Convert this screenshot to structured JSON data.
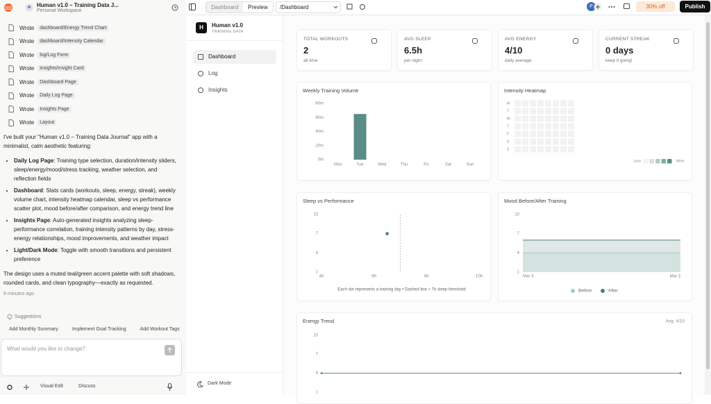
{
  "chat": {
    "project_title": "Human v1.0 – Training Data J...",
    "workspace": "Personal Workspace",
    "actions": [
      {
        "verb": "Wrote",
        "target": "dashboard/Energy Trend Chart"
      },
      {
        "verb": "Wrote",
        "target": "dashboard/Intensity Calendar"
      },
      {
        "verb": "Wrote",
        "target": "log/Log Form"
      },
      {
        "verb": "Wrote",
        "target": "insights/Insight Card"
      },
      {
        "verb": "Wrote",
        "target": "Dashboard Page"
      },
      {
        "verb": "Wrote",
        "target": "Daily Log Page"
      },
      {
        "verb": "Wrote",
        "target": "Insights Page"
      },
      {
        "verb": "Wrote",
        "target": "Layout"
      }
    ],
    "summary_intro": "I've built your \"Human v1.0 – Training Data Journal\" app with a minimalist, calm aesthetic featuring:",
    "features": [
      {
        "title": "Daily Log Page",
        "text": ": Training type selection, duration/intensity sliders, sleep/energy/mood/stress tracking, weather selection, and reflection fields"
      },
      {
        "title": "Dashboard",
        "text": ": Stats cards (workouts, sleep, energy, streak), weekly volume chart, intensity heatmap calendar, sleep vs performance scatter plot, mood before/after comparison, and energy trend line"
      },
      {
        "title": "Insights Page",
        "text": ": Auto-generated insights analyzing sleep-performance correlation, training intensity patterns by day, stress-energy relationships, mood improvements, and weather impact"
      },
      {
        "title": "Light/Dark Mode",
        "text": ": Toggle with smooth transitions and persistent preference"
      }
    ],
    "summary_outro": "The design uses a muted teal/green accent palette with soft shadows, rounded cards, and clean typography—exactly as requested.",
    "timestamp": "9 minutes ago",
    "suggestions_label": "Suggestions",
    "suggestions": [
      "Add Monthly Summary",
      "Implement Goal Tracking",
      "Add Workout Tags"
    ],
    "input_placeholder": "What would you like to change?",
    "tools": [
      "Visual Edit",
      "Discuss"
    ]
  },
  "toolbar": {
    "tabs": [
      "Dashboard",
      "Preview"
    ],
    "route": "/Dashboard",
    "avatar": "P",
    "promo": "30% off",
    "publish": "Publish"
  },
  "app": {
    "logo": "H",
    "name": "Human v1.0",
    "subtitle": "TRAINING DATA",
    "nav": [
      "Dashboard",
      "Log",
      "Insights"
    ],
    "theme_toggle": "Dark Mode",
    "stats": [
      {
        "label": "TOTAL WORKOUTS",
        "value": 2,
        "note": "all time"
      },
      {
        "label": "AVG SLEEP",
        "value": "6.5h",
        "note": "per night"
      },
      {
        "label": "AVG ENERGY",
        "value": "4/10",
        "note": "daily average"
      },
      {
        "label": "CURRENT STREAK",
        "value": "0 days",
        "note": "keep it going!"
      }
    ]
  },
  "chart_data": [
    {
      "type": "bar",
      "title": "Weekly Training Volume",
      "categories": [
        "Mon",
        "Tue",
        "Wed",
        "Thu",
        "Fri",
        "Sat",
        "Sun"
      ],
      "values": [
        0,
        65,
        0,
        0,
        0,
        0,
        0
      ],
      "color": "#5b8c85",
      "ylim": [
        0,
        80
      ],
      "yticks": [
        {
          "value": 0,
          "label": "0m"
        },
        {
          "value": 20,
          "label": "20m"
        },
        {
          "value": 40,
          "label": "40m"
        },
        {
          "value": 60,
          "label": "60m"
        },
        {
          "value": 80,
          "label": "80m"
        }
      ]
    },
    {
      "type": "heatmap",
      "title": "Intensity Heatmap",
      "rows": [
        "M",
        "T",
        "W",
        "T",
        "F",
        "S",
        "S"
      ],
      "values": [
        [
          0,
          0,
          0,
          0,
          0,
          0,
          0,
          0
        ],
        [
          0,
          0,
          0,
          0,
          0,
          0,
          0,
          0
        ],
        [
          0,
          0,
          0,
          0,
          0,
          0,
          0,
          0
        ],
        [
          0,
          0,
          0,
          0,
          0,
          0,
          0,
          0
        ],
        [
          0,
          0,
          0,
          0,
          0,
          0,
          0,
          0
        ],
        [
          0,
          0,
          0,
          0,
          0,
          0,
          0,
          0
        ],
        [
          0,
          0,
          0,
          0,
          0,
          0,
          0,
          0
        ]
      ],
      "colors": [
        "#f0f3f2",
        "#d3e2df",
        "#b0cbc6",
        "#84aba4",
        "#5b8c85"
      ],
      "legend": [
        "Less",
        "More"
      ]
    },
    {
      "type": "scatter",
      "title": "Sleep vs Performance",
      "x": [
        6.5
      ],
      "values": [
        7
      ],
      "color": "#5b8c85",
      "xlim": [
        4,
        10
      ],
      "xticks": [
        {
          "value": 4,
          "label": "4h"
        },
        {
          "value": 6,
          "label": "6h"
        },
        {
          "value": 8,
          "label": "8h"
        },
        {
          "value": 10,
          "label": "10h"
        }
      ],
      "ylim": [
        1,
        10
      ],
      "yticks": [
        1,
        4,
        7,
        10
      ],
      "threshold": 7,
      "caption": "Each dot represents a training day • Dashed line = 7h sleep threshold"
    },
    {
      "type": "area",
      "title": "Mood Before/After Training",
      "categories": [
        "Mar 3",
        "Mar 3"
      ],
      "series": [
        {
          "name": "Before",
          "color": "#a9c9c4",
          "values": [
            4,
            4
          ]
        },
        {
          "name": "After",
          "color": "#4f7f7a",
          "values": [
            6,
            6
          ]
        }
      ],
      "ylim": [
        1,
        10
      ],
      "yticks": [
        1,
        4,
        7,
        10
      ]
    },
    {
      "type": "line",
      "title": "Energy Trend",
      "annotation": "Avg: 4/10",
      "categories": [
        null,
        null
      ],
      "values": [
        4,
        4
      ],
      "color": "#5b8c85",
      "ylim": [
        1,
        10
      ],
      "yticks": [
        1,
        4,
        7,
        10
      ]
    }
  ]
}
